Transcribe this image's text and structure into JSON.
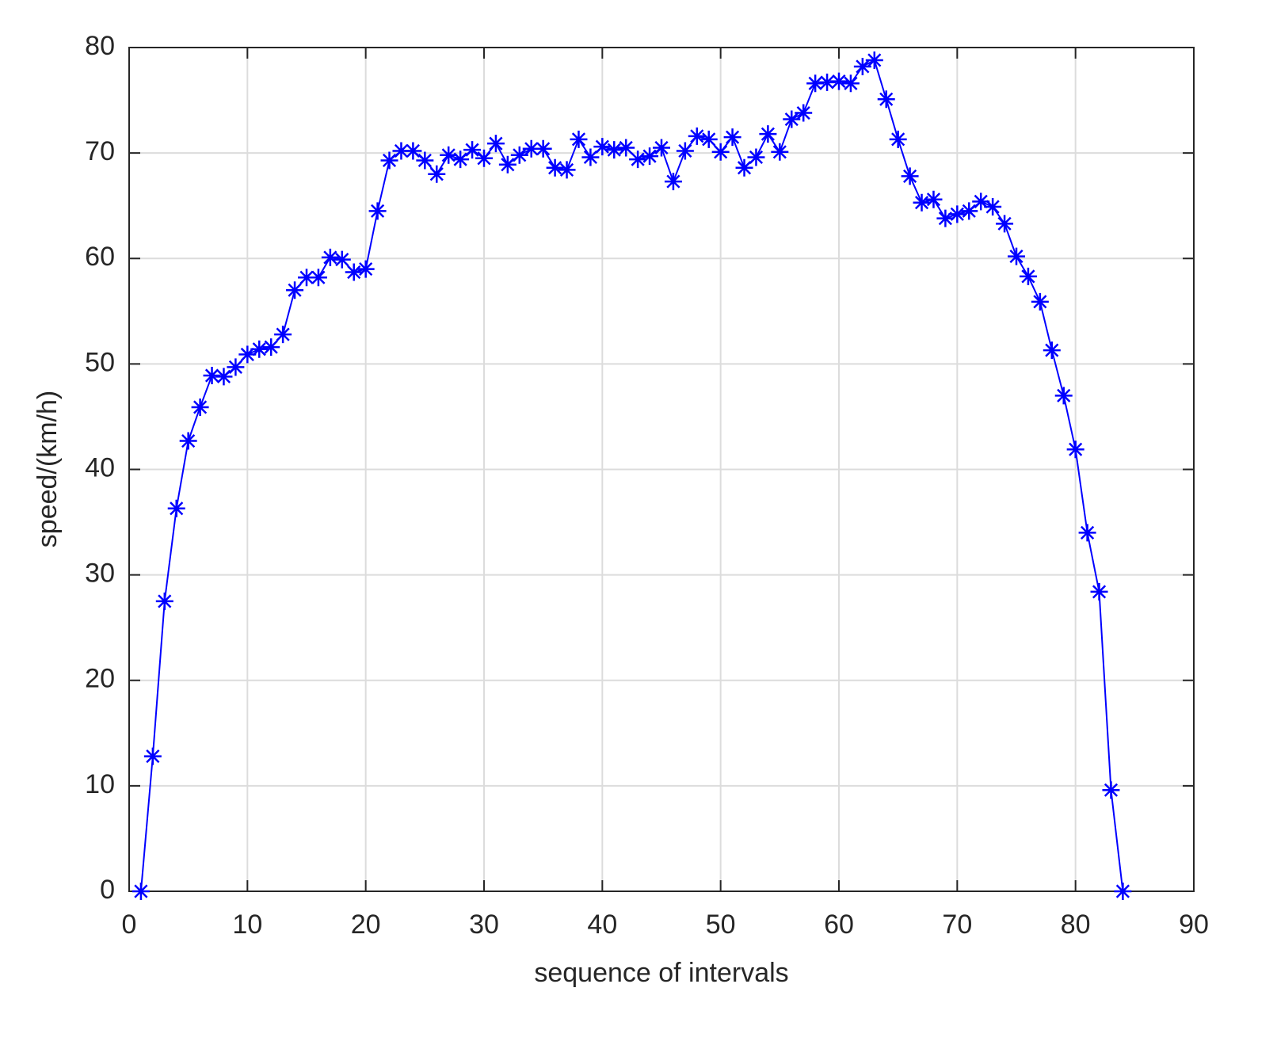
{
  "chart_data": {
    "type": "line",
    "xlabel": "sequence of intervals",
    "ylabel": "speed/(km/h)",
    "x": [
      1,
      2,
      3,
      4,
      5,
      6,
      7,
      8,
      9,
      10,
      11,
      12,
      13,
      14,
      15,
      16,
      17,
      18,
      19,
      20,
      21,
      22,
      23,
      24,
      25,
      26,
      27,
      28,
      29,
      30,
      31,
      32,
      33,
      34,
      35,
      36,
      37,
      38,
      39,
      40,
      41,
      42,
      43,
      44,
      45,
      46,
      47,
      48,
      49,
      50,
      51,
      52,
      53,
      54,
      55,
      56,
      57,
      58,
      59,
      60,
      61,
      62,
      63,
      64,
      65,
      66,
      67,
      68,
      69,
      70,
      71,
      72,
      73,
      74,
      75,
      76,
      77,
      78,
      79,
      80,
      81,
      82,
      83,
      84
    ],
    "values": [
      0,
      12.8,
      27.5,
      36.3,
      42.7,
      45.9,
      48.9,
      48.8,
      49.7,
      50.9,
      51.4,
      51.6,
      52.8,
      57.0,
      58.2,
      58.2,
      60.1,
      59.9,
      58.7,
      59.0,
      64.5,
      69.3,
      70.2,
      70.2,
      69.3,
      68.0,
      69.8,
      69.4,
      70.3,
      69.5,
      70.9,
      68.9,
      69.8,
      70.4,
      70.4,
      68.6,
      68.4,
      71.3,
      69.6,
      70.6,
      70.3,
      70.5,
      69.4,
      69.7,
      70.5,
      67.3,
      70.2,
      71.6,
      71.3,
      70.1,
      71.5,
      68.6,
      69.6,
      71.8,
      70.1,
      73.2,
      73.8,
      76.6,
      76.7,
      76.8,
      76.6,
      78.2,
      78.8,
      75.1,
      71.3,
      67.8,
      65.3,
      65.6,
      63.8,
      64.2,
      64.5,
      65.4,
      64.9,
      63.3,
      60.2,
      58.3,
      55.9,
      51.3,
      47.0,
      41.9,
      34.0,
      28.4,
      9.6,
      0
    ],
    "color": "#0000ff",
    "xlim": [
      0,
      90
    ],
    "xticks": [
      0,
      10,
      20,
      30,
      40,
      50,
      60,
      70,
      80,
      90
    ],
    "ylim": [
      0,
      80
    ],
    "yticks": [
      0,
      10,
      20,
      30,
      40,
      50,
      60,
      70,
      80
    ],
    "grid": true
  }
}
